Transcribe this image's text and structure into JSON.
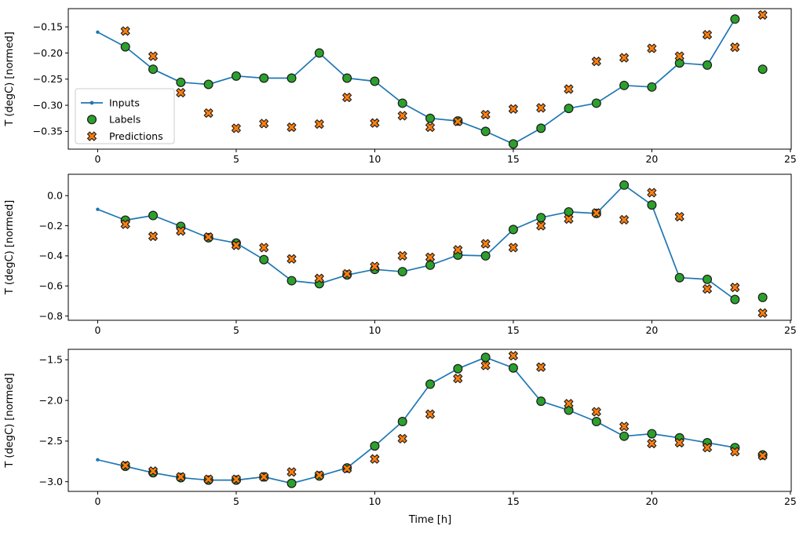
{
  "figure": {
    "xlabel": "Time [h]",
    "ylabel": "T (degC) [normed]",
    "legend_items": [
      "Inputs",
      "Labels",
      "Predictions"
    ],
    "colors": {
      "inputs_line": "#1f77b4",
      "labels_marker": "#2ca02c",
      "predictions_marker": "#ff7f0e",
      "marker_edge": "#1a1a1a",
      "legend_border": "#cccccc",
      "spine": "#000000"
    }
  },
  "chart_data": [
    {
      "type": "line",
      "title": "",
      "ylabel": "T (degC) [normed]",
      "xlabel": "",
      "grid": false,
      "legend_position": "upper-left-inside",
      "xlim": [
        -1.06,
        25.03
      ],
      "ylim": [
        -0.384,
        -0.115
      ],
      "xticks": [
        0,
        5,
        10,
        15,
        20,
        25
      ],
      "xtick_labels": [
        "0",
        "5",
        "10",
        "15",
        "20",
        "25"
      ],
      "yticks": [
        -0.15,
        -0.2,
        -0.25,
        -0.3,
        -0.35
      ],
      "ytick_labels": [
        "−0.15",
        "−0.20",
        "−0.25",
        "−0.30",
        "−0.35"
      ],
      "series": [
        {
          "name": "Inputs",
          "style": "line-dot",
          "x": [
            0,
            1,
            2,
            3,
            4,
            5,
            6,
            7,
            8,
            9,
            10,
            11,
            12,
            13,
            14,
            15,
            16,
            17,
            18,
            19,
            20,
            21,
            22,
            23
          ],
          "y": [
            -0.16,
            -0.188,
            -0.231,
            -0.256,
            -0.26,
            -0.244,
            -0.248,
            -0.248,
            -0.2,
            -0.248,
            -0.254,
            -0.296,
            -0.325,
            -0.33,
            -0.35,
            -0.374,
            -0.344,
            -0.306,
            -0.296,
            -0.262,
            -0.265,
            -0.219,
            -0.223,
            -0.135
          ]
        },
        {
          "name": "Labels",
          "style": "circle",
          "x": [
            1,
            2,
            3,
            4,
            5,
            6,
            7,
            8,
            9,
            10,
            11,
            12,
            13,
            14,
            15,
            16,
            17,
            18,
            19,
            20,
            21,
            22,
            23,
            24
          ],
          "y": [
            -0.188,
            -0.231,
            -0.256,
            -0.26,
            -0.244,
            -0.248,
            -0.248,
            -0.2,
            -0.248,
            -0.254,
            -0.296,
            -0.325,
            -0.33,
            -0.35,
            -0.374,
            -0.344,
            -0.306,
            -0.296,
            -0.262,
            -0.265,
            -0.219,
            -0.223,
            -0.135,
            -0.231
          ]
        },
        {
          "name": "Predictions",
          "style": "x-cross",
          "x": [
            1,
            2,
            3,
            4,
            5,
            6,
            7,
            8,
            9,
            10,
            11,
            12,
            13,
            14,
            15,
            16,
            17,
            18,
            19,
            20,
            21,
            22,
            23,
            24
          ],
          "y": [
            -0.158,
            -0.206,
            -0.276,
            -0.315,
            -0.344,
            -0.335,
            -0.342,
            -0.336,
            -0.285,
            -0.334,
            -0.32,
            -0.342,
            -0.331,
            -0.318,
            -0.307,
            -0.305,
            -0.269,
            -0.216,
            -0.209,
            -0.191,
            -0.206,
            -0.165,
            -0.189,
            -0.127
          ]
        }
      ]
    },
    {
      "type": "line",
      "title": "",
      "ylabel": "T (degC) [normed]",
      "xlabel": "",
      "grid": false,
      "legend_position": "none",
      "xlim": [
        -1.06,
        25.03
      ],
      "ylim": [
        -0.828,
        0.142
      ],
      "xticks": [
        0,
        5,
        10,
        15,
        20,
        25
      ],
      "xtick_labels": [
        "0",
        "5",
        "10",
        "15",
        "20",
        "25"
      ],
      "yticks": [
        0.0,
        -0.2,
        -0.4,
        -0.6,
        -0.8
      ],
      "ytick_labels": [
        "0.0",
        "−0.2",
        "−0.4",
        "−0.6",
        "−0.8"
      ],
      "series": [
        {
          "name": "Inputs",
          "style": "line-dot",
          "x": [
            0,
            1,
            2,
            3,
            4,
            5,
            6,
            7,
            8,
            9,
            10,
            11,
            12,
            13,
            14,
            15,
            16,
            17,
            18,
            19,
            20,
            21,
            22,
            23
          ],
          "y": [
            -0.091,
            -0.163,
            -0.132,
            -0.204,
            -0.28,
            -0.315,
            -0.425,
            -0.565,
            -0.585,
            -0.527,
            -0.49,
            -0.505,
            -0.462,
            -0.395,
            -0.4,
            -0.225,
            -0.146,
            -0.108,
            -0.118,
            0.07,
            -0.062,
            -0.545,
            -0.556,
            -0.69
          ]
        },
        {
          "name": "Labels",
          "style": "circle",
          "x": [
            1,
            2,
            3,
            4,
            5,
            6,
            7,
            8,
            9,
            10,
            11,
            12,
            13,
            14,
            15,
            16,
            17,
            18,
            19,
            20,
            21,
            22,
            23,
            24
          ],
          "y": [
            -0.163,
            -0.132,
            -0.204,
            -0.28,
            -0.315,
            -0.425,
            -0.565,
            -0.585,
            -0.527,
            -0.49,
            -0.505,
            -0.462,
            -0.395,
            -0.4,
            -0.225,
            -0.146,
            -0.108,
            -0.118,
            0.07,
            -0.062,
            -0.545,
            -0.556,
            -0.69,
            -0.676
          ]
        },
        {
          "name": "Predictions",
          "style": "x-cross",
          "x": [
            1,
            2,
            3,
            4,
            5,
            6,
            7,
            8,
            9,
            10,
            11,
            12,
            13,
            14,
            15,
            16,
            17,
            18,
            19,
            20,
            21,
            22,
            23,
            24
          ],
          "y": [
            -0.19,
            -0.27,
            -0.235,
            -0.275,
            -0.33,
            -0.345,
            -0.42,
            -0.55,
            -0.52,
            -0.47,
            -0.4,
            -0.41,
            -0.36,
            -0.32,
            -0.345,
            -0.2,
            -0.155,
            -0.115,
            -0.16,
            0.02,
            -0.14,
            -0.62,
            -0.61,
            -0.78
          ]
        }
      ]
    },
    {
      "type": "line",
      "title": "",
      "ylabel": "T (degC) [normed]",
      "xlabel": "Time [h]",
      "grid": false,
      "legend_position": "none",
      "xlim": [
        -1.06,
        25.03
      ],
      "ylim": [
        -3.119,
        -1.371
      ],
      "xticks": [
        0,
        5,
        10,
        15,
        20,
        25
      ],
      "xtick_labels": [
        "0",
        "5",
        "10",
        "15",
        "20",
        "25"
      ],
      "yticks": [
        -1.5,
        -2.0,
        -2.5,
        -3.0
      ],
      "ytick_labels": [
        "−1.5",
        "−2.0",
        "−2.5",
        "−3.0"
      ],
      "series": [
        {
          "name": "Inputs",
          "style": "line-dot",
          "x": [
            0,
            1,
            2,
            3,
            4,
            5,
            6,
            7,
            8,
            9,
            10,
            11,
            12,
            13,
            14,
            15,
            16,
            17,
            18,
            19,
            20,
            21,
            22,
            23
          ],
          "y": [
            -2.73,
            -2.81,
            -2.89,
            -2.95,
            -2.98,
            -2.98,
            -2.94,
            -3.02,
            -2.93,
            -2.83,
            -2.56,
            -2.26,
            -1.8,
            -1.61,
            -1.47,
            -1.6,
            -2.01,
            -2.12,
            -2.26,
            -2.44,
            -2.41,
            -2.46,
            -2.52,
            -2.58
          ]
        },
        {
          "name": "Labels",
          "style": "circle",
          "x": [
            1,
            2,
            3,
            4,
            5,
            6,
            7,
            8,
            9,
            10,
            11,
            12,
            13,
            14,
            15,
            16,
            17,
            18,
            19,
            20,
            21,
            22,
            23,
            24
          ],
          "y": [
            -2.81,
            -2.89,
            -2.95,
            -2.98,
            -2.98,
            -2.94,
            -3.02,
            -2.93,
            -2.83,
            -2.56,
            -2.26,
            -1.8,
            -1.61,
            -1.47,
            -1.6,
            -2.01,
            -2.12,
            -2.26,
            -2.44,
            -2.41,
            -2.46,
            -2.52,
            -2.58,
            -2.67
          ]
        },
        {
          "name": "Predictions",
          "style": "x-cross",
          "x": [
            1,
            2,
            3,
            4,
            5,
            6,
            7,
            8,
            9,
            10,
            11,
            12,
            13,
            14,
            15,
            16,
            17,
            18,
            19,
            20,
            21,
            22,
            23,
            24
          ],
          "y": [
            -2.8,
            -2.87,
            -2.94,
            -2.97,
            -2.97,
            -2.94,
            -2.88,
            -2.92,
            -2.84,
            -2.72,
            -2.47,
            -2.17,
            -1.73,
            -1.57,
            -1.45,
            -1.59,
            -2.04,
            -2.14,
            -2.32,
            -2.53,
            -2.52,
            -2.58,
            -2.63,
            -2.68
          ]
        }
      ]
    }
  ]
}
